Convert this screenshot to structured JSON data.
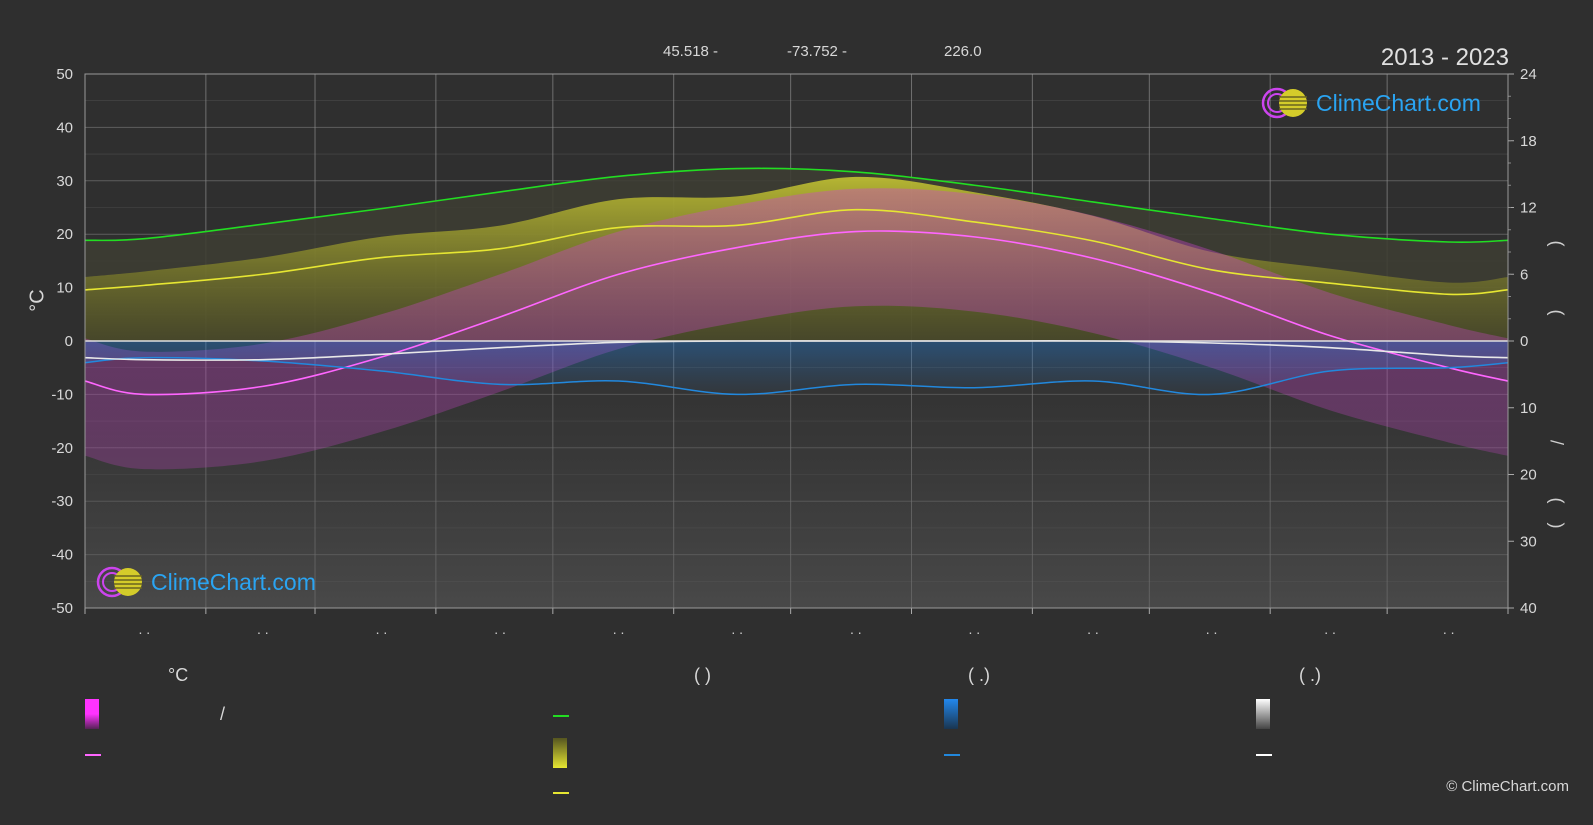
{
  "header": {
    "lat": "45.518 -",
    "lon": "-73.752 -",
    "elev": "226.0",
    "years": "2013 - 2023"
  },
  "axes": {
    "left_unit": "°C",
    "right_marks": [
      ")",
      ")",
      "/",
      ")",
      "("
    ]
  },
  "logo": {
    "text": "ClimeChart.com"
  },
  "legend": {
    "col1_title": "°C",
    "col1_slash": "/",
    "col2_title": "(          )",
    "col3_title": "(   .)",
    "col4_title": "(   .)"
  },
  "colors": {
    "daylight": "#22dd22",
    "sunshine": "#e6e632",
    "temp_mean": "#ff66ff",
    "temp_fill": "#cc33cc",
    "rain": "#2288dd",
    "snow": "#e8e8e8",
    "grid": "#6a6a6a"
  },
  "copyright": "© ClimeChart.com",
  "chart_data": {
    "type": "line",
    "x": [
      1,
      2,
      3,
      4,
      5,
      6,
      7,
      8,
      9,
      10,
      11,
      12
    ],
    "x_tick_labels": [
      ". .",
      ". .",
      ". .",
      ". .",
      ". .",
      ". .",
      ". .",
      ". .",
      ". .",
      ". .",
      ". .",
      ". ."
    ],
    "ylim_left": [
      -50,
      50
    ],
    "yticks_left": [
      50,
      40,
      30,
      20,
      10,
      0,
      -10,
      -20,
      -30,
      -40,
      -50
    ],
    "right_upper_ticks": [
      24,
      18,
      12,
      6,
      0
    ],
    "right_lower_ticks": [
      10,
      20,
      30,
      40
    ],
    "ylabel": "°C",
    "grid": true,
    "series": [
      {
        "key": "daylight_hours",
        "values": [
          9.2,
          10.5,
          11.9,
          13.4,
          14.8,
          15.5,
          15.2,
          14.0,
          12.5,
          11.0,
          9.6,
          8.9
        ]
      },
      {
        "key": "sunshine_hours",
        "values": [
          5.0,
          6.0,
          7.5,
          8.3,
          10.2,
          10.4,
          11.8,
          10.7,
          9.0,
          6.4,
          5.2,
          4.2
        ]
      },
      {
        "key": "temp_mean_c",
        "values": [
          -10.0,
          -8.5,
          -3.0,
          4.5,
          12.5,
          17.5,
          20.5,
          19.5,
          15.5,
          9.0,
          1.0,
          -5.0
        ]
      },
      {
        "key": "rain_mm",
        "values": [
          2.5,
          3.0,
          4.5,
          6.5,
          6.0,
          8.0,
          6.5,
          7.0,
          6.0,
          8.0,
          4.5,
          4.0
        ]
      },
      {
        "key": "snow_mm",
        "values": [
          2.8,
          2.8,
          2.0,
          1.0,
          0.2,
          0,
          0,
          0,
          0,
          0.3,
          1.0,
          2.2
        ]
      }
    ]
  }
}
